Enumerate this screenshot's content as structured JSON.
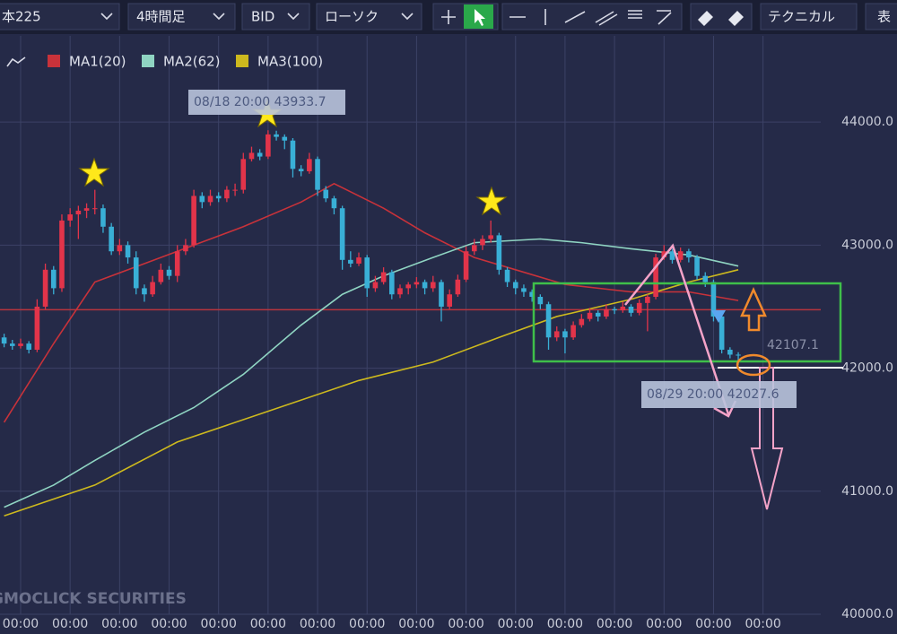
{
  "toolbar": {
    "symbol": "本225",
    "timeframe": "4時間足",
    "price": "BID",
    "chart_style": "ローソク",
    "technical": "テクニカル",
    "table": "表"
  },
  "watermark": "GMOCLICK SECURITIES",
  "chart_data": {
    "type": "candlestick",
    "up_color": "#e2344a",
    "down_color": "#39afd6",
    "xlim": [
      -0.5,
      99
    ],
    "ylim": [
      40000,
      44555
    ],
    "yticks": [
      {
        "value": 40000,
        "label": "40000.0"
      },
      {
        "value": 41000,
        "label": "41000.0"
      },
      {
        "value": 42000,
        "label": "42000.0"
      },
      {
        "value": 43000,
        "label": "43000.0"
      },
      {
        "value": 44000,
        "label": "44000.0"
      }
    ],
    "xticks": [
      {
        "value": 2,
        "label": "00:00"
      },
      {
        "value": 8,
        "label": "00:00"
      },
      {
        "value": 14,
        "label": "00:00"
      },
      {
        "value": 20,
        "label": "00:00"
      },
      {
        "value": 26,
        "label": "00:00"
      },
      {
        "value": 32,
        "label": "00:00"
      },
      {
        "value": 38,
        "label": "00:00"
      },
      {
        "value": 44,
        "label": "00:00"
      },
      {
        "value": 50,
        "label": "00:00"
      },
      {
        "value": 56,
        "label": "00:00"
      },
      {
        "value": 62,
        "label": "00:00"
      },
      {
        "value": 68,
        "label": "00:00"
      },
      {
        "value": 74,
        "label": "00:00"
      },
      {
        "value": 80,
        "label": "00:00"
      },
      {
        "value": 86,
        "label": "00:00"
      },
      {
        "value": 92,
        "label": "00:00"
      }
    ],
    "grid": true,
    "ohlc": [
      [
        42250,
        42280,
        42170,
        42200
      ],
      [
        42200,
        42230,
        42150,
        42180
      ],
      [
        42180,
        42240,
        42160,
        42200
      ],
      [
        42200,
        42220,
        42120,
        42150
      ],
      [
        42150,
        42560,
        42130,
        42500
      ],
      [
        42500,
        42850,
        42480,
        42800
      ],
      [
        42800,
        42830,
        42600,
        42650
      ],
      [
        42650,
        43250,
        42620,
        43200
      ],
      [
        43200,
        43300,
        43150,
        43250
      ],
      [
        43250,
        43320,
        43050,
        43280
      ],
      [
        43280,
        43340,
        43220,
        43300
      ],
      [
        43300,
        43450,
        43250,
        43300
      ],
      [
        43300,
        43330,
        43100,
        43150
      ],
      [
        43150,
        43180,
        42920,
        42950
      ],
      [
        42950,
        43050,
        42920,
        43000
      ],
      [
        43000,
        43030,
        42850,
        42900
      ],
      [
        42900,
        42950,
        42600,
        42650
      ],
      [
        42650,
        42680,
        42540,
        42600
      ],
      [
        42600,
        42750,
        42580,
        42700
      ],
      [
        42700,
        42850,
        42680,
        42800
      ],
      [
        42800,
        42830,
        42720,
        42750
      ],
      [
        42750,
        43000,
        42700,
        42950
      ],
      [
        42950,
        43050,
        42920,
        43000
      ],
      [
        43000,
        43450,
        42980,
        43400
      ],
      [
        43400,
        43430,
        43300,
        43350
      ],
      [
        43350,
        43450,
        43320,
        43400
      ],
      [
        43400,
        43430,
        43350,
        43380
      ],
      [
        43380,
        43480,
        43350,
        43450
      ],
      [
        43450,
        43500,
        43400,
        43450
      ],
      [
        43450,
        43750,
        43420,
        43700
      ],
      [
        43700,
        43800,
        43680,
        43750
      ],
      [
        43750,
        43780,
        43690,
        43720
      ],
      [
        43720,
        43933.7,
        43700,
        43900
      ],
      [
        43900,
        43930,
        43850,
        43880
      ],
      [
        43880,
        43900,
        43780,
        43850
      ],
      [
        43850,
        43870,
        43550,
        43620
      ],
      [
        43620,
        43650,
        43560,
        43600
      ],
      [
        43600,
        43750,
        43580,
        43700
      ],
      [
        43700,
        43720,
        43400,
        43450
      ],
      [
        43450,
        43480,
        43350,
        43380
      ],
      [
        43380,
        43400,
        43250,
        43300
      ],
      [
        43300,
        43320,
        42800,
        42880
      ],
      [
        42880,
        42950,
        42820,
        42850
      ],
      [
        42850,
        42940,
        42830,
        42900
      ],
      [
        42900,
        42920,
        42580,
        42650
      ],
      [
        42650,
        42750,
        42620,
        42700
      ],
      [
        42700,
        42820,
        42680,
        42780
      ],
      [
        42780,
        42800,
        42560,
        42600
      ],
      [
        42600,
        42680,
        42570,
        42650
      ],
      [
        42650,
        42700,
        42600,
        42680
      ],
      [
        42680,
        42740,
        42650,
        42700
      ],
      [
        42700,
        42720,
        42600,
        42650
      ],
      [
        42650,
        42750,
        42620,
        42700
      ],
      [
        42700,
        42720,
        42380,
        42500
      ],
      [
        42500,
        42640,
        42480,
        42600
      ],
      [
        42600,
        42760,
        42580,
        42720
      ],
      [
        42720,
        42990,
        42700,
        42950
      ],
      [
        42950,
        43050,
        42920,
        43000
      ],
      [
        43000,
        43080,
        42960,
        43050
      ],
      [
        43050,
        43200,
        43020,
        43080
      ],
      [
        43080,
        43100,
        42760,
        42800
      ],
      [
        42800,
        42820,
        42660,
        42700
      ],
      [
        42700,
        42720,
        42600,
        42650
      ],
      [
        42650,
        42680,
        42580,
        42620
      ],
      [
        42620,
        42640,
        42540,
        42580
      ],
      [
        42580,
        42600,
        42480,
        42520
      ],
      [
        42520,
        42540,
        42150,
        42250
      ],
      [
        42250,
        42340,
        42220,
        42300
      ],
      [
        42300,
        42320,
        42120,
        42250
      ],
      [
        42250,
        42380,
        42230,
        42350
      ],
      [
        42350,
        42440,
        42330,
        42400
      ],
      [
        42400,
        42490,
        42380,
        42450
      ],
      [
        42450,
        42470,
        42380,
        42420
      ],
      [
        42420,
        42520,
        42400,
        42480
      ],
      [
        42480,
        42500,
        42440,
        42470
      ],
      [
        42470,
        42540,
        42450,
        42500
      ],
      [
        42500,
        42520,
        42420,
        42450
      ],
      [
        42450,
        42560,
        42430,
        42530
      ],
      [
        42530,
        42600,
        42300,
        42580
      ],
      [
        42580,
        42930,
        42560,
        42900
      ],
      [
        42900,
        43000,
        42880,
        42950
      ],
      [
        42950,
        42970,
        42850,
        42880
      ],
      [
        42880,
        42980,
        42860,
        42950
      ],
      [
        42950,
        42970,
        42860,
        42900
      ],
      [
        42900,
        42920,
        42720,
        42750
      ],
      [
        42750,
        42780,
        42660,
        42700
      ],
      [
        42700,
        42720,
        42380,
        42420
      ],
      [
        42420,
        42440,
        42120,
        42150
      ],
      [
        42150,
        42170,
        42080,
        42110
      ],
      [
        42110,
        42130,
        42027.6,
        42107.1
      ]
    ],
    "series": [
      {
        "name": "MA1(20)",
        "color": "#c8323a",
        "x": [
          0,
          6,
          11,
          17,
          23,
          29,
          36,
          40,
          46,
          51,
          57,
          62,
          68,
          76,
          83,
          89
        ],
        "values": [
          41560,
          42200,
          42700,
          42850,
          43000,
          43150,
          43350,
          43500,
          43300,
          43100,
          42900,
          42800,
          42680,
          42620,
          42620,
          42550
        ]
      },
      {
        "name": "MA2(62)",
        "color": "#8fd4c2",
        "x": [
          0,
          6,
          11,
          17,
          23,
          29,
          36,
          41,
          46,
          52,
          57,
          65,
          70,
          76,
          83,
          89
        ],
        "values": [
          40870,
          41050,
          41250,
          41480,
          41680,
          41950,
          42350,
          42600,
          42750,
          42900,
          43020,
          43050,
          43020,
          42970,
          42920,
          42830
        ]
      },
      {
        "name": "MA3(100)",
        "color": "#cdb91e",
        "x": [
          0,
          11,
          21,
          32,
          43,
          52,
          60,
          67,
          76,
          83,
          89
        ],
        "values": [
          40800,
          41050,
          41400,
          41650,
          41900,
          42050,
          42250,
          42420,
          42560,
          42700,
          42800
        ]
      }
    ],
    "price_lines": [
      {
        "value": 42475,
        "color": "#b8343e"
      }
    ],
    "annotations": [
      "08/18 20:00 43933.7",
      "08/29 20:00 42027.6"
    ]
  }
}
